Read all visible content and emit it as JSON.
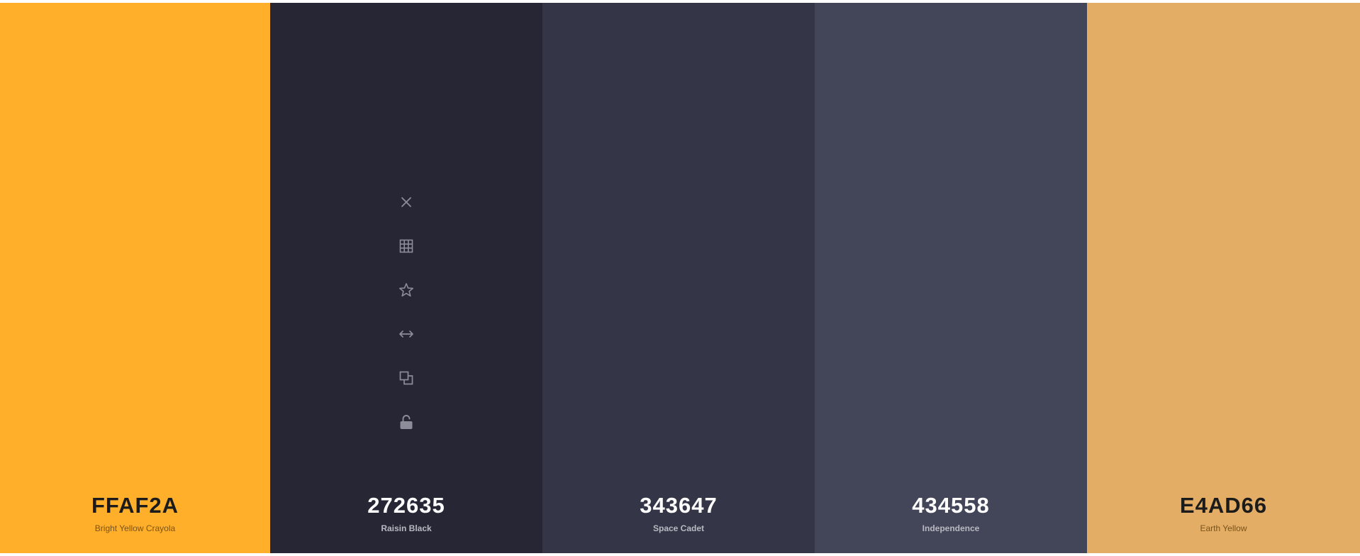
{
  "colors": [
    {
      "hex": "FFAF2A",
      "name": "Bright Yellow Crayola",
      "bg": "#FFAF2A",
      "tone": "light"
    },
    {
      "hex": "272635",
      "name": "Raisin Black",
      "bg": "#272635",
      "tone": "dark"
    },
    {
      "hex": "343647",
      "name": "Space Cadet",
      "bg": "#343647",
      "tone": "dark"
    },
    {
      "hex": "434558",
      "name": "Independence",
      "bg": "#434558",
      "tone": "dark"
    },
    {
      "hex": "E4AD66",
      "name": "Earth Yellow",
      "bg": "#E4AD66",
      "tone": "light"
    }
  ],
  "toolbar": {
    "icons": [
      "close-icon",
      "grid-icon",
      "star-icon",
      "arrows-horizontal-icon",
      "copy-icon",
      "unlock-icon"
    ],
    "icon_color": "#8d8c99"
  }
}
